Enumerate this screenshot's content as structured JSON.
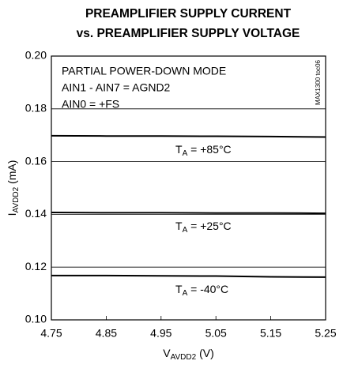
{
  "chart_data": {
    "type": "line",
    "title": [
      "PREAMPLIFIER SUPPLY CURRENT",
      "vs. PREAMPLIFIER SUPPLY VOLTAGE"
    ],
    "y_label": [
      "I",
      "AVDD2",
      " (mA)"
    ],
    "x_label": [
      "V",
      "AVDD2",
      " (V)"
    ],
    "annotations": [
      "PARTIAL POWER-DOWN MODE",
      "AIN1 - AIN7 = AGND2",
      "AIN0 = +FS"
    ],
    "watermark": "MAX1300 toc06",
    "x": [
      4.75,
      4.85,
      4.95,
      5.05,
      5.15,
      5.25
    ],
    "series": [
      {
        "name": [
          "T",
          "A",
          " = +85°C"
        ],
        "color": "#000000",
        "values": [
          0.1698,
          0.1697,
          0.1697,
          0.1696,
          0.1695,
          0.1693
        ]
      },
      {
        "name": [
          "T",
          "A",
          " = +25°C"
        ],
        "color": "#000000",
        "values": [
          0.1407,
          0.1406,
          0.1406,
          0.1405,
          0.1405,
          0.1404
        ]
      },
      {
        "name": [
          "T",
          "A",
          " = -40°C"
        ],
        "color": "#000000",
        "values": [
          0.1168,
          0.1168,
          0.1167,
          0.1166,
          0.1163,
          0.1162
        ]
      }
    ],
    "xlim": [
      4.75,
      5.25
    ],
    "xticks": [
      4.75,
      4.85,
      4.95,
      5.05,
      5.15,
      5.25
    ],
    "ylim": [
      0.1,
      0.2
    ],
    "yticks": [
      {
        "value": 0.1,
        "label": "0.10"
      },
      0.12,
      0.14,
      0.16,
      0.18,
      {
        "value": 0.2,
        "label": "0.20"
      }
    ],
    "grid": true
  }
}
